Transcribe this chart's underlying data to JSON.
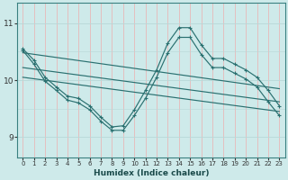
{
  "xlabel": "Humidex (Indice chaleur)",
  "bg_color": "#ceeaea",
  "line_color": "#2a7070",
  "vgrid_color": "#e8b8b8",
  "hgrid_color": "#b8d8d8",
  "xlim": [
    -0.5,
    23.5
  ],
  "ylim": [
    8.65,
    11.35
  ],
  "yticks": [
    9,
    10,
    11
  ],
  "xticks": [
    0,
    1,
    2,
    3,
    4,
    5,
    6,
    7,
    8,
    9,
    10,
    11,
    12,
    13,
    14,
    15,
    16,
    17,
    18,
    19,
    20,
    21,
    22,
    23
  ],
  "curve1_x": [
    0,
    1,
    2,
    3,
    4,
    5,
    6,
    7,
    8,
    9,
    10,
    11,
    12,
    13,
    14,
    15,
    16,
    17,
    18,
    19,
    20,
    21,
    22,
    23
  ],
  "curve1_y": [
    10.55,
    10.35,
    10.05,
    9.88,
    9.72,
    9.68,
    9.55,
    9.35,
    9.18,
    9.2,
    9.48,
    9.82,
    10.18,
    10.65,
    10.92,
    10.92,
    10.62,
    10.38,
    10.38,
    10.28,
    10.18,
    10.05,
    9.82,
    9.55
  ],
  "curve2_x": [
    0,
    1,
    2,
    3,
    4,
    5,
    6,
    7,
    8,
    9,
    10,
    11,
    12,
    13,
    14,
    15,
    16,
    17,
    18,
    19,
    20,
    21,
    22,
    23
  ],
  "curve2_y": [
    10.52,
    10.28,
    9.98,
    9.82,
    9.65,
    9.6,
    9.48,
    9.28,
    9.12,
    9.12,
    9.38,
    9.68,
    10.05,
    10.48,
    10.75,
    10.75,
    10.45,
    10.22,
    10.22,
    10.12,
    10.02,
    9.88,
    9.62,
    9.38
  ],
  "line1_x": [
    0,
    23
  ],
  "line1_y": [
    10.48,
    9.85
  ],
  "line2_x": [
    0,
    23
  ],
  "line2_y": [
    10.22,
    9.62
  ],
  "line3_x": [
    0,
    23
  ],
  "line3_y": [
    10.05,
    9.45
  ]
}
